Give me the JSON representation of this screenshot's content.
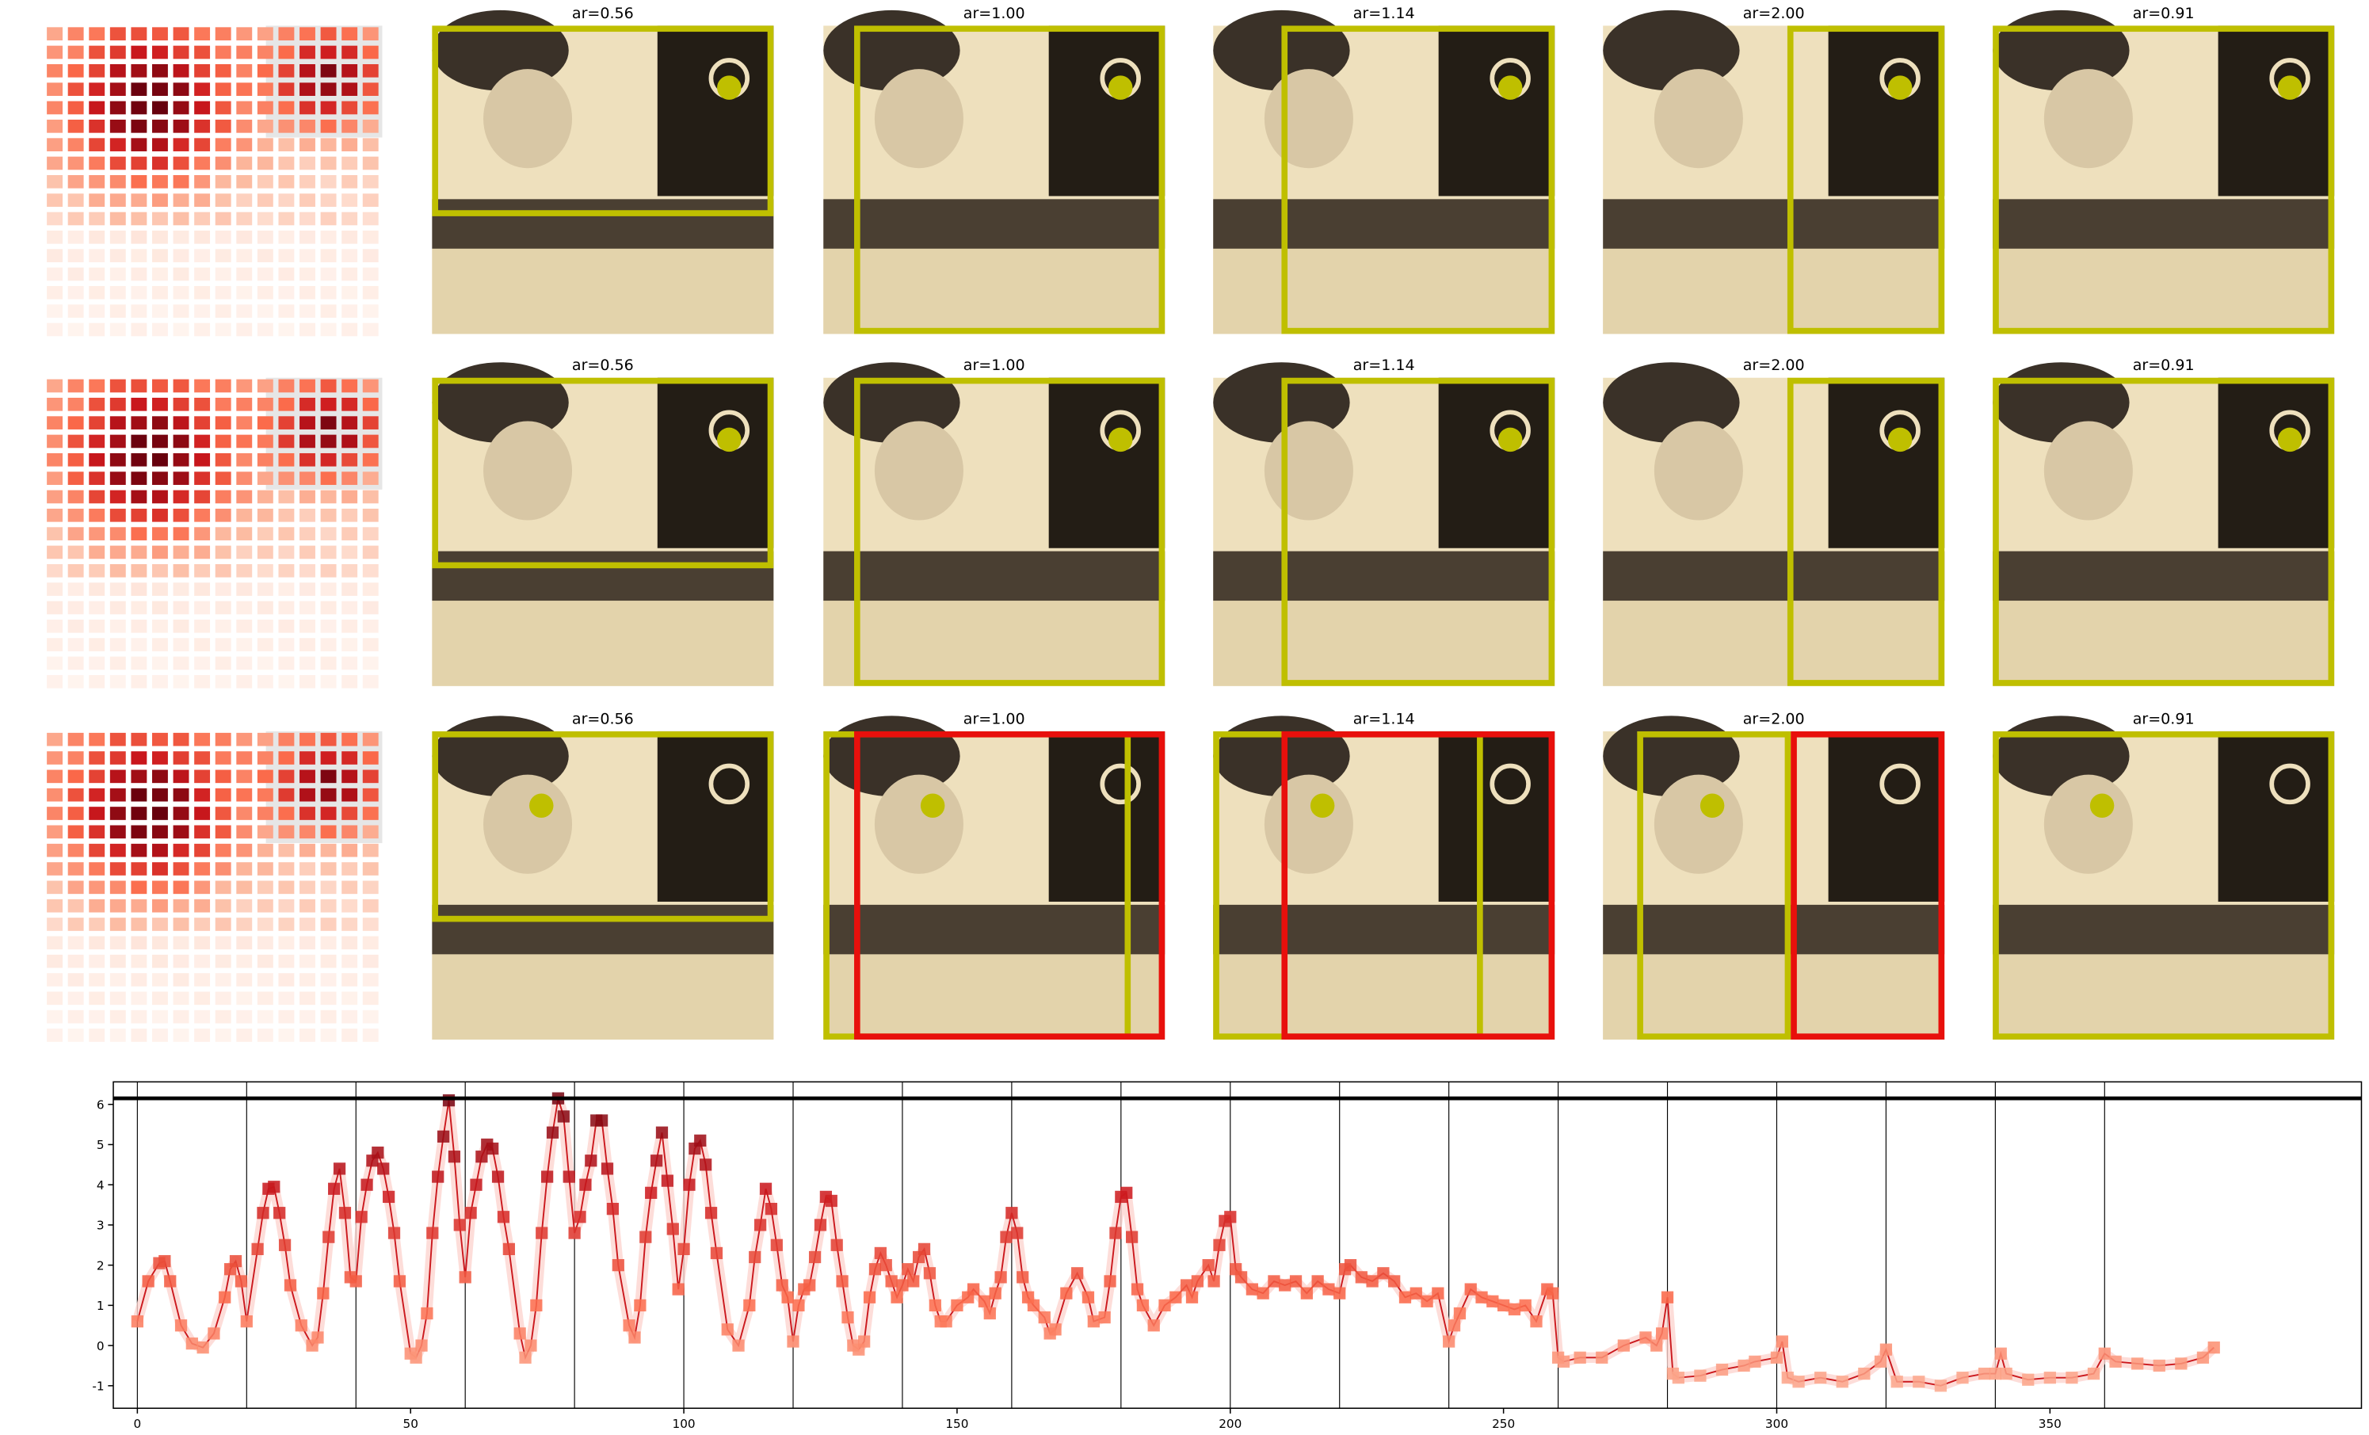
{
  "panels": [
    {
      "titles": [
        "ar=0.56",
        "ar=1.00",
        "ar=1.14",
        "ar=2.00",
        "ar=0.91"
      ]
    },
    {
      "titles": [
        "ar=0.56",
        "ar=1.00",
        "ar=1.14",
        "ar=2.00",
        "ar=0.91"
      ]
    },
    {
      "titles": [
        "ar=0.56",
        "ar=1.00",
        "ar=1.14",
        "ar=2.00",
        "ar=0.91"
      ]
    }
  ],
  "chart_data": {
    "type": "line",
    "x": [
      0,
      2,
      4,
      5,
      6,
      8,
      10,
      12,
      14,
      16,
      17,
      18,
      19,
      20,
      22,
      23,
      24,
      25,
      26,
      27,
      28,
      30,
      32,
      33,
      34,
      35,
      36,
      37,
      38,
      39,
      40,
      41,
      42,
      43,
      44,
      45,
      46,
      47,
      48,
      50,
      51,
      52,
      53,
      54,
      55,
      56,
      57,
      58,
      59,
      60,
      61,
      62,
      63,
      64,
      65,
      66,
      67,
      68,
      70,
      71,
      72,
      73,
      74,
      75,
      76,
      77,
      78,
      79,
      80,
      81,
      82,
      83,
      84,
      85,
      86,
      87,
      88,
      90,
      91,
      92,
      93,
      94,
      95,
      96,
      97,
      98,
      99,
      100,
      101,
      102,
      103,
      104,
      105,
      106,
      108,
      110,
      112,
      113,
      114,
      115,
      116,
      117,
      118,
      119,
      120,
      121,
      122,
      123,
      124,
      125,
      126,
      127,
      128,
      129,
      130,
      131,
      132,
      133,
      134,
      135,
      136,
      137,
      138,
      139,
      140,
      141,
      142,
      143,
      144,
      145,
      146,
      147,
      148,
      150,
      152,
      153,
      155,
      156,
      157,
      158,
      159,
      160,
      161,
      162,
      163,
      164,
      166,
      167,
      168,
      170,
      172,
      174,
      175,
      177,
      178,
      179,
      180,
      181,
      182,
      183,
      184,
      186,
      188,
      190,
      192,
      193,
      194,
      196,
      197,
      198,
      199,
      200,
      201,
      202,
      204,
      206,
      208,
      210,
      212,
      214,
      216,
      218,
      220,
      221,
      222,
      224,
      226,
      228,
      230,
      232,
      234,
      236,
      238,
      240,
      241,
      242,
      244,
      246,
      248,
      250,
      252,
      254,
      256,
      258,
      259,
      260,
      261,
      264,
      268,
      272,
      276,
      278,
      279,
      280,
      281,
      282,
      286,
      290,
      294,
      296,
      300,
      301,
      302,
      304,
      308,
      312,
      316,
      319,
      320,
      322,
      326,
      330,
      334,
      338,
      340,
      341,
      342,
      346,
      350,
      354,
      358,
      360,
      362,
      366,
      370,
      374,
      378,
      380
    ],
    "series": [
      {
        "color": "#cb181d",
        "values": [
          0.6,
          1.6,
          2.05,
          2.1,
          1.6,
          0.5,
          0.05,
          -0.05,
          0.3,
          1.2,
          1.9,
          2.1,
          1.6,
          0.6,
          2.4,
          3.3,
          3.9,
          3.95,
          3.3,
          2.5,
          1.5,
          0.5,
          0.0,
          0.2,
          1.3,
          2.7,
          3.9,
          4.4,
          3.3,
          1.7,
          1.6,
          3.2,
          4.0,
          4.6,
          4.8,
          4.4,
          3.7,
          2.8,
          1.6,
          -0.2,
          -0.3,
          0.0,
          0.8,
          2.8,
          4.2,
          5.2,
          6.1,
          4.7,
          3.0,
          1.7,
          3.3,
          4.0,
          4.7,
          5.0,
          4.9,
          4.2,
          3.2,
          2.4,
          0.3,
          -0.3,
          0.0,
          1.0,
          2.8,
          4.2,
          5.3,
          6.15,
          5.7,
          4.2,
          2.8,
          3.2,
          4.0,
          4.6,
          5.6,
          5.6,
          4.4,
          3.4,
          2.0,
          0.5,
          0.2,
          1.0,
          2.7,
          3.8,
          4.6,
          5.3,
          4.1,
          2.9,
          1.4,
          2.4,
          4.0,
          4.9,
          5.1,
          4.5,
          3.3,
          2.3,
          0.4,
          0.0,
          1.0,
          2.2,
          3.0,
          3.9,
          3.4,
          2.5,
          1.5,
          1.2,
          0.1,
          1.0,
          1.4,
          1.5,
          2.2,
          3.0,
          3.7,
          3.6,
          2.5,
          1.6,
          0.7,
          0.0,
          -0.1,
          0.1,
          1.2,
          1.9,
          2.3,
          2.0,
          1.6,
          1.2,
          1.5,
          1.9,
          1.6,
          2.2,
          2.4,
          1.8,
          1.0,
          0.6,
          0.6,
          1.0,
          1.2,
          1.4,
          1.1,
          0.8,
          1.3,
          1.7,
          2.7,
          3.3,
          2.8,
          1.7,
          1.2,
          1.0,
          0.7,
          0.3,
          0.4,
          1.3,
          1.8,
          1.2,
          0.6,
          0.7,
          1.6,
          2.8,
          3.7,
          3.8,
          2.7,
          1.4,
          1.0,
          0.5,
          1.0,
          1.2,
          1.5,
          1.2,
          1.6,
          2.0,
          1.6,
          2.5,
          3.1,
          3.2,
          1.9,
          1.7,
          1.4,
          1.3,
          1.6,
          1.5,
          1.6,
          1.3,
          1.6,
          1.4,
          1.3,
          1.9,
          2.0,
          1.7,
          1.6,
          1.8,
          1.6,
          1.2,
          1.3,
          1.1,
          1.3,
          0.1,
          0.5,
          0.8,
          1.4,
          1.2,
          1.1,
          1.0,
          0.9,
          1.0,
          0.6,
          1.4,
          1.3,
          -0.3,
          -0.4,
          -0.3,
          -0.3,
          0.0,
          0.2,
          0.0,
          0.3,
          1.2,
          -0.7,
          -0.8,
          -0.75,
          -0.6,
          -0.5,
          -0.4,
          -0.3,
          0.1,
          -0.8,
          -0.9,
          -0.8,
          -0.9,
          -0.7,
          -0.4,
          -0.1,
          -0.9,
          -0.9,
          -1.0,
          -0.8,
          -0.7,
          -0.7,
          -0.2,
          -0.7,
          -0.85,
          -0.8,
          -0.8,
          -0.7,
          -0.2,
          -0.4,
          -0.45,
          -0.5,
          -0.45,
          -0.3,
          -0.05
        ]
      }
    ],
    "xlim": [
      -4.4,
      407
    ],
    "ylim": [
      -1.56,
      6.56
    ],
    "xticks": [
      0,
      50,
      100,
      150,
      200,
      250,
      300,
      350
    ],
    "yticks": [
      -1,
      0,
      1,
      2,
      3,
      4,
      5,
      6
    ],
    "vlines": [
      0,
      20,
      40,
      60,
      80,
      100,
      120,
      140,
      160,
      180,
      200,
      220,
      240,
      260,
      280,
      300,
      320,
      340,
      360
    ],
    "hline": 6.15
  }
}
